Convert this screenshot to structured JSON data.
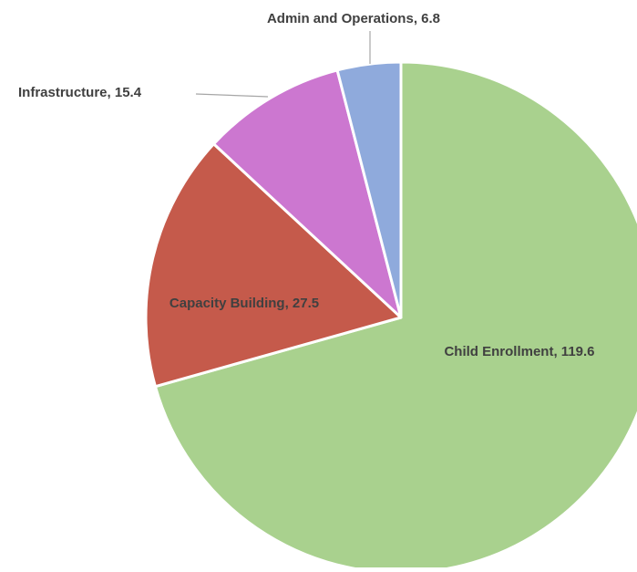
{
  "chart_data": {
    "type": "pie",
    "title": "",
    "label_separator": ",  ",
    "slices": [
      {
        "label": "Child Enrollment",
        "value": 119.6,
        "display_value": "119.6",
        "color": "#a9d18e"
      },
      {
        "label": "Capacity Building",
        "value": 27.5,
        "display_value": "27.5",
        "color": "#c55a4b"
      },
      {
        "label": "Infrastructure",
        "value": 15.4,
        "display_value": "15.4",
        "color": "#cc77d0"
      },
      {
        "label": "Admin and Operations",
        "value": 6.8,
        "display_value": "6.8",
        "color": "#8faadc"
      }
    ],
    "legend": "none",
    "data_labels": "category-name-and-value"
  }
}
